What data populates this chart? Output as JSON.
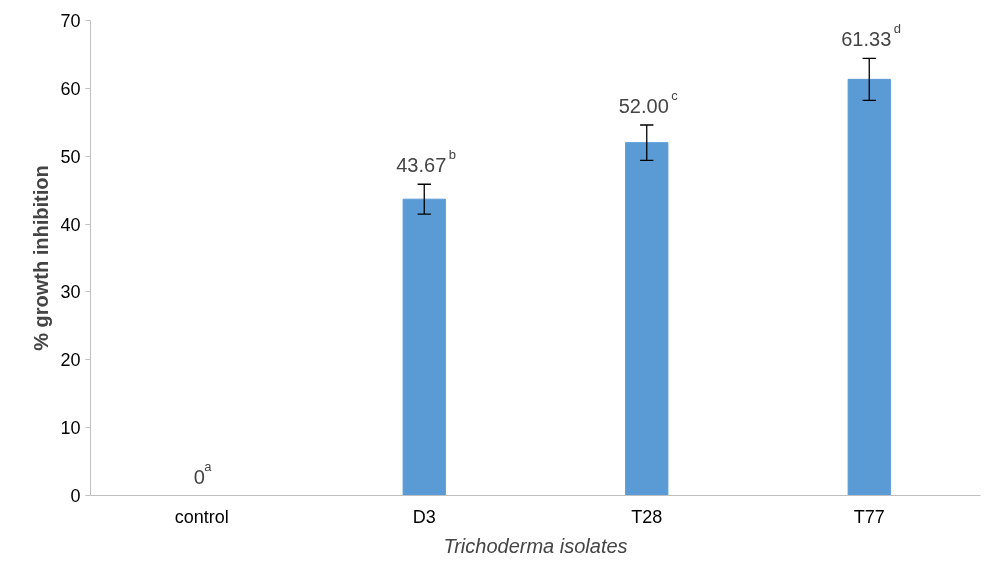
{
  "chart_data": {
    "type": "bar",
    "xlabel": "Trichoderma isolates",
    "ylabel": "% growth inhibition",
    "categories": [
      "control",
      "D3",
      "T28",
      "T77"
    ],
    "values": [
      0,
      43.67,
      52.0,
      61.33
    ],
    "color": "#5b9bd5",
    "errors": [
      null,
      2.2,
      2.6,
      3.1
    ],
    "value_labels": [
      "0$^{a}$",
      "43.67$^{b}$",
      "52.00$^{c}$",
      "61.33$^{d}$"
    ],
    "ylim": [
      0,
      70
    ],
    "yticks": [
      0,
      10,
      20,
      30,
      40,
      50,
      60,
      70
    ],
    "grid": false
  }
}
